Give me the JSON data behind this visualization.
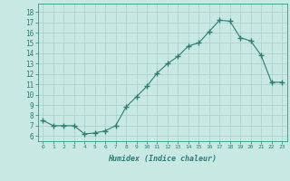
{
  "x": [
    0,
    1,
    2,
    3,
    4,
    5,
    6,
    7,
    8,
    9,
    10,
    11,
    12,
    13,
    14,
    15,
    16,
    17,
    18,
    19,
    20,
    21,
    22,
    23
  ],
  "y": [
    7.5,
    7.0,
    7.0,
    7.0,
    6.2,
    6.3,
    6.5,
    7.0,
    8.8,
    9.8,
    10.8,
    12.1,
    13.0,
    13.7,
    14.7,
    15.0,
    16.1,
    17.2,
    17.1,
    15.5,
    15.2,
    13.8,
    11.2,
    11.2
  ],
  "line_color": "#2e7d6e",
  "marker": "+",
  "marker_size": 4,
  "bg_color": "#c8e8e4",
  "grid_color": "#a8cdc8",
  "xlabel": "Humidex (Indice chaleur)",
  "ylabel_ticks": [
    6,
    7,
    8,
    9,
    10,
    11,
    12,
    13,
    14,
    15,
    16,
    17,
    18
  ],
  "xlim": [
    -0.5,
    23.5
  ],
  "ylim": [
    5.5,
    18.8
  ],
  "tick_color": "#2e7d6e",
  "label_color": "#2e7d6e"
}
